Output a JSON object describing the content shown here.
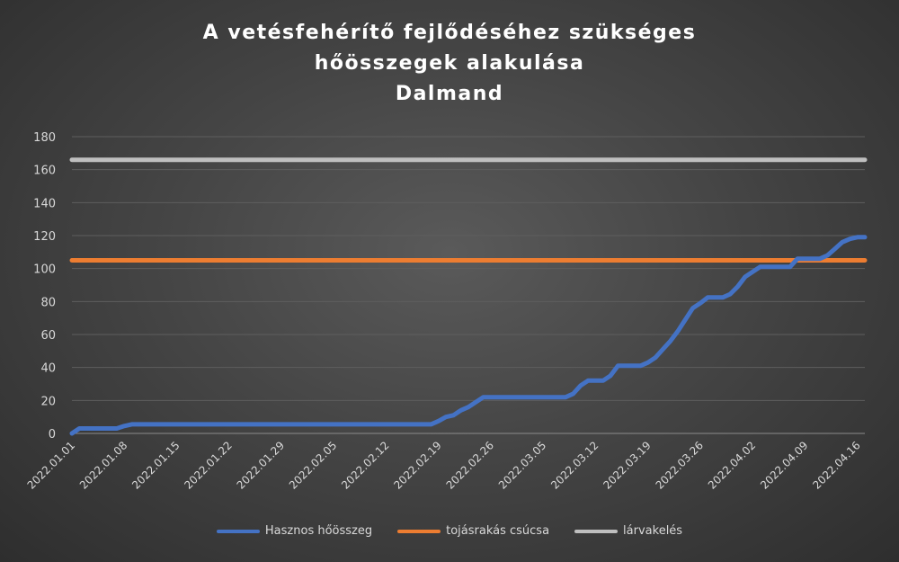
{
  "chart_data": {
    "type": "line",
    "title_lines": [
      "A vetésfehérítő fejlődéséhez szükséges",
      "hőösszegek alakulása",
      "Dalmand"
    ],
    "xlabel": "",
    "ylabel": "",
    "ylim": [
      0,
      180
    ],
    "yticks": [
      0,
      20,
      40,
      60,
      80,
      100,
      120,
      140,
      160,
      180
    ],
    "x_tick_labels": [
      "2022.01.01",
      "2022.01.08",
      "2022.01.15",
      "2022.01.22",
      "2022.01.29",
      "2022.02.05",
      "2022.02.12",
      "2022.02.19",
      "2022.02.26",
      "2022.03.05",
      "2022.03.12",
      "2022.03.19",
      "2022.03.26",
      "2022.04.02",
      "2022.04.09",
      "2022.04.16"
    ],
    "grid": true,
    "legend_position": "bottom",
    "series": [
      {
        "name": "Hasznos hőösszeg",
        "color": "#4472c4",
        "points": [
          [
            "2022.01.01",
            0
          ],
          [
            "2022.01.02",
            3
          ],
          [
            "2022.01.07",
            3
          ],
          [
            "2022.01.08",
            4.5
          ],
          [
            "2022.01.09",
            5.5
          ],
          [
            "2022.02.18",
            5.5
          ],
          [
            "2022.02.19",
            7.5
          ],
          [
            "2022.02.20",
            10
          ],
          [
            "2022.02.21",
            11
          ],
          [
            "2022.02.22",
            14
          ],
          [
            "2022.02.23",
            16
          ],
          [
            "2022.02.24",
            19
          ],
          [
            "2022.02.25",
            22
          ],
          [
            "2022.03.08",
            22
          ],
          [
            "2022.03.09",
            24
          ],
          [
            "2022.03.10",
            29
          ],
          [
            "2022.03.11",
            32
          ],
          [
            "2022.03.13",
            32
          ],
          [
            "2022.03.14",
            35
          ],
          [
            "2022.03.15",
            41
          ],
          [
            "2022.03.18",
            41
          ],
          [
            "2022.03.19",
            43
          ],
          [
            "2022.03.20",
            46
          ],
          [
            "2022.03.21",
            51
          ],
          [
            "2022.03.22",
            56
          ],
          [
            "2022.03.23",
            62
          ],
          [
            "2022.03.24",
            69
          ],
          [
            "2022.03.25",
            76
          ],
          [
            "2022.03.26",
            79
          ],
          [
            "2022.03.27",
            82.5
          ],
          [
            "2022.03.29",
            82.5
          ],
          [
            "2022.03.30",
            84.5
          ],
          [
            "2022.03.31",
            89
          ],
          [
            "2022.04.01",
            95
          ],
          [
            "2022.04.02",
            98
          ],
          [
            "2022.04.03",
            101
          ],
          [
            "2022.04.07",
            101
          ],
          [
            "2022.04.08",
            106
          ],
          [
            "2022.04.11",
            106
          ],
          [
            "2022.04.12",
            108
          ],
          [
            "2022.04.13",
            112
          ],
          [
            "2022.04.14",
            116
          ],
          [
            "2022.04.15",
            118
          ],
          [
            "2022.04.16",
            119
          ],
          [
            "2022.04.17",
            119
          ]
        ]
      },
      {
        "name": "tojásrakás csúcsa",
        "color": "#ed7d31",
        "points": [
          [
            "2022.01.01",
            105
          ],
          [
            "2022.04.17",
            105
          ]
        ]
      },
      {
        "name": "lárvakelés",
        "color": "#bfbfbf",
        "points": [
          [
            "2022.01.01",
            166
          ],
          [
            "2022.04.17",
            166
          ]
        ]
      }
    ]
  }
}
